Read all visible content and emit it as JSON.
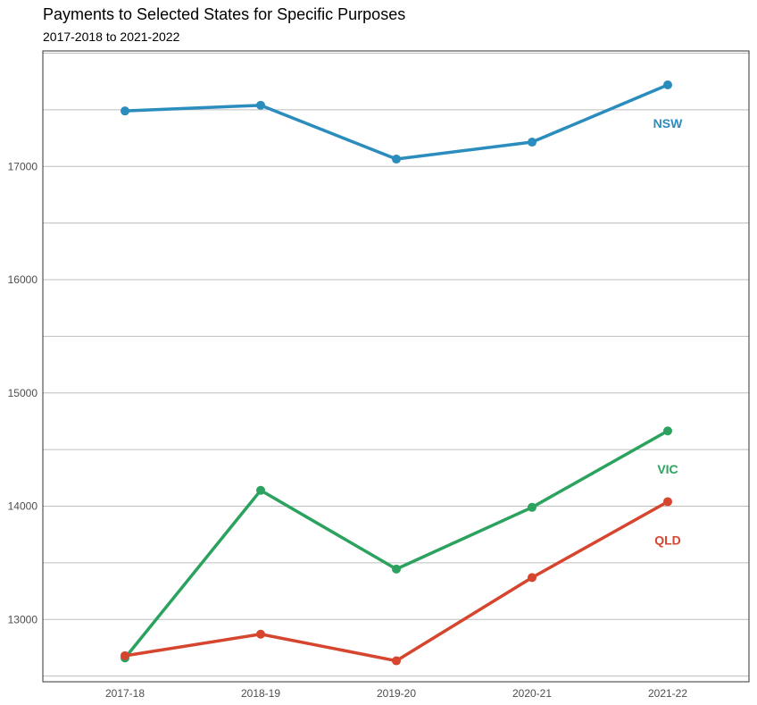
{
  "chart_data": {
    "type": "line",
    "title": "Payments to Selected States for Specific Purposes",
    "subtitle": "2017-2018 to 2021-2022",
    "xlabel": "",
    "ylabel": "",
    "categories": [
      "2017-18",
      "2018-19",
      "2019-20",
      "2020-21",
      "2021-22"
    ],
    "ylim": [
      12450,
      18020
    ],
    "yticks": [
      13000,
      14000,
      15000,
      16000,
      17000
    ],
    "grid": true,
    "series": [
      {
        "name": "NSW",
        "color": "#2b8cbe",
        "values": [
          17490,
          17540,
          17065,
          17215,
          17720
        ]
      },
      {
        "name": "VIC",
        "color": "#2ca25f",
        "values": [
          12660,
          14140,
          13445,
          13990,
          14665
        ]
      },
      {
        "name": "QLD",
        "color": "#d6452e",
        "values": [
          12680,
          12870,
          12635,
          13370,
          14040
        ]
      }
    ]
  }
}
